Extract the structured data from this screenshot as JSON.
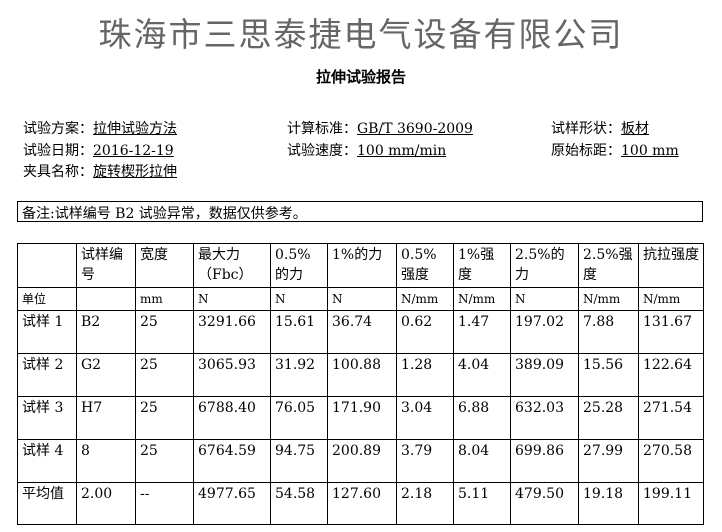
{
  "company": "珠海市三思泰捷电气设备有限公司",
  "title": "拉伸试验报告",
  "info": [
    {
      "label": "试验方案：",
      "value": "拉伸试验方法"
    },
    {
      "label": "计算标准：",
      "value": "GB/T 3690-2009"
    },
    {
      "label": "试样形状：",
      "value": "板材"
    },
    {
      "label": "试验日期：",
      "value": "2016-12-19"
    },
    {
      "label": "试验速度：",
      "value": "100 mm/min"
    },
    {
      "label": "原始标距：",
      "value": "100 mm"
    },
    {
      "label": "夹具名称：",
      "value": "旋转楔形拉伸"
    }
  ],
  "note": "备注:试样编号 B2 试验异常，数据仅供参考。",
  "table": {
    "headers": [
      "",
      "试样编号",
      "宽度",
      "最大力（Fbc）",
      "0.5%的力",
      "1%的力",
      "0.5%强度",
      "1%强度",
      "2.5%的力",
      "2.5%强度",
      "抗拉强度"
    ],
    "units": [
      "单位",
      "",
      "mm",
      "N",
      "N",
      "N",
      "N/mm",
      "N/mm",
      "N",
      "N/mm",
      "N/mm"
    ],
    "rows": [
      [
        "试样 1",
        "B2",
        "25",
        "3291.66",
        "15.61",
        "36.74",
        "0.62",
        "1.47",
        "197.02",
        "7.88",
        "131.67"
      ],
      [
        "试样 2",
        "G2",
        "25",
        "3065.93",
        "31.92",
        "100.88",
        "1.28",
        "4.04",
        "389.09",
        "15.56",
        "122.64"
      ],
      [
        "试样 3",
        "H7",
        "25",
        "6788.40",
        "76.05",
        "171.90",
        "3.04",
        "6.88",
        "632.03",
        "25.28",
        "271.54"
      ],
      [
        "试样 4",
        "8",
        "25",
        "6764.59",
        "94.75",
        "200.89",
        "3.79",
        "8.04",
        "699.86",
        "27.99",
        "270.58"
      ],
      [
        "平均值",
        "2.00",
        "--",
        "4977.65",
        "54.58",
        "127.60",
        "2.18",
        "5.11",
        "479.50",
        "19.18",
        "199.11"
      ]
    ]
  }
}
